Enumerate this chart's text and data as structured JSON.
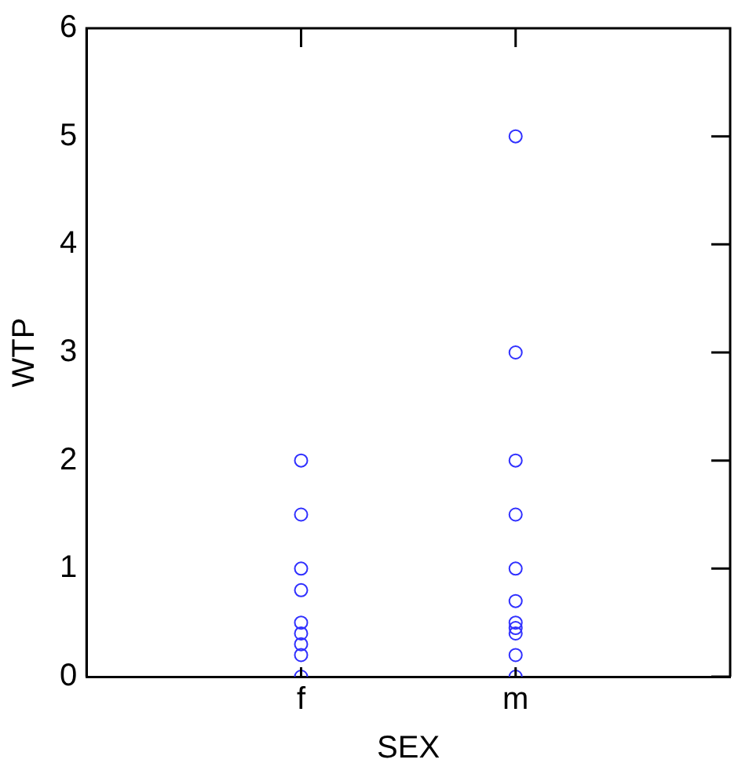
{
  "chart_data": {
    "type": "scatter",
    "xlabel": "SEX",
    "ylabel": "WTP",
    "categories": [
      "f",
      "m"
    ],
    "series": [
      {
        "color": "#3030ff",
        "x": [
          "f",
          "f",
          "f",
          "f",
          "f",
          "f",
          "f",
          "f",
          "f",
          "m",
          "m",
          "m",
          "m",
          "m",
          "m",
          "m",
          "m",
          "m",
          "m",
          "m"
        ],
        "values": [
          0,
          0.2,
          0.3,
          0.4,
          0.5,
          0.8,
          1,
          1.5,
          2,
          0,
          0.2,
          0.4,
          0.45,
          0.5,
          0.7,
          1,
          1.5,
          2,
          3,
          5
        ]
      }
    ],
    "ylim": [
      0,
      6
    ],
    "yticks": [
      0,
      1,
      2,
      3,
      4,
      5,
      6
    ],
    "marker": "circle",
    "grid": false,
    "legend": false
  }
}
